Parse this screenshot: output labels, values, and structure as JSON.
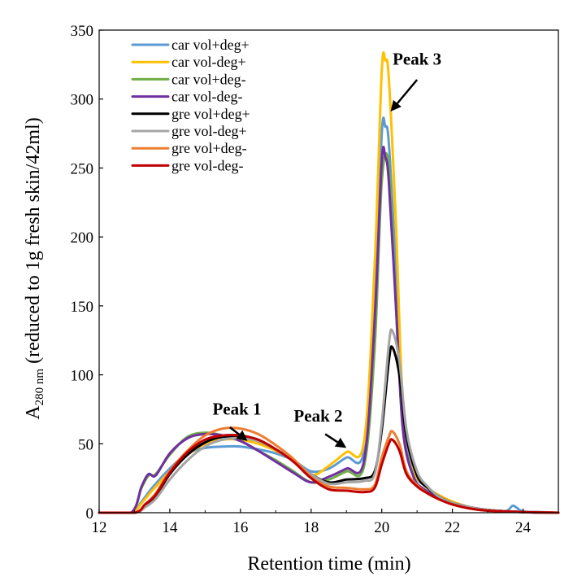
{
  "chart_data": {
    "type": "line",
    "xlabel": "Retention time (min)",
    "ylabel": {
      "prefix": "A",
      "subscript": "280 nm",
      "suffix": " (reduced to 1g fresh skin/42ml)"
    },
    "xlim": [
      12,
      25
    ],
    "ylim": [
      0,
      350
    ],
    "xticks": [
      "12",
      "14",
      "16",
      "18",
      "20",
      "22",
      "24"
    ],
    "yticks": [
      "0",
      "50",
      "100",
      "150",
      "200",
      "250",
      "300",
      "350"
    ],
    "grid": false,
    "legend_position": "top-left",
    "series": [
      {
        "name": "car vol+deg+",
        "color": "#5B9BD5",
        "x": [
          12,
          12.9,
          13.2,
          13.5,
          14,
          14.5,
          15,
          15.5,
          16,
          16.5,
          17,
          17.5,
          18,
          18.5,
          19,
          19.5,
          19.8,
          20,
          20.1,
          20.2,
          20.4,
          20.6,
          20.9,
          21.2,
          21.6,
          22,
          22.5,
          23,
          23.5,
          23.7,
          23.8,
          24,
          24.5,
          25
        ],
        "y": [
          0,
          0,
          8,
          18,
          32,
          43,
          47,
          48,
          48,
          46,
          43,
          38,
          30,
          32,
          40,
          45,
          150,
          275,
          280,
          268,
          175,
          70,
          30,
          20,
          13,
          8,
          4,
          2,
          1,
          5,
          4,
          1,
          0.5,
          0
        ]
      },
      {
        "name": "car vol-deg+",
        "color": "#FFC000",
        "x": [
          12,
          12.9,
          13.2,
          13.5,
          14,
          14.5,
          15,
          15.5,
          16,
          16.5,
          17,
          17.5,
          18,
          18.5,
          19,
          19.5,
          19.8,
          20,
          20.1,
          20.2,
          20.4,
          20.6,
          20.9,
          21.2,
          21.6,
          22,
          22.5,
          23,
          23.5,
          24,
          24.5,
          25
        ],
        "y": [
          0,
          0,
          7,
          16,
          30,
          42,
          50,
          53,
          53,
          50,
          45,
          38,
          27,
          34,
          44,
          52,
          180,
          320,
          328,
          315,
          210,
          80,
          32,
          20,
          13,
          8,
          4,
          2,
          1,
          0.5,
          0.3,
          0
        ]
      },
      {
        "name": "car vol+deg-",
        "color": "#70AD47",
        "x": [
          12,
          12.9,
          13.2,
          13.4,
          13.6,
          14,
          14.5,
          15,
          15.5,
          16,
          16.5,
          17,
          17.5,
          18,
          18.5,
          19,
          19.5,
          19.8,
          20,
          20.2,
          20.4,
          20.6,
          20.9,
          21.2,
          21.6,
          22,
          22.5,
          23,
          24,
          25
        ],
        "y": [
          0,
          0,
          18,
          27,
          28,
          42,
          55,
          58,
          56,
          52,
          45,
          38,
          30,
          22,
          24,
          30,
          34,
          120,
          240,
          252,
          150,
          60,
          26,
          17,
          11,
          7,
          4,
          2,
          0.5,
          0
        ]
      },
      {
        "name": "car vol-deg-",
        "color": "#7030A0",
        "x": [
          12,
          12.9,
          13.2,
          13.4,
          13.6,
          14,
          14.5,
          15,
          15.5,
          16,
          16.5,
          17,
          17.5,
          18,
          18.5,
          19,
          19.5,
          19.8,
          20,
          20.1,
          20.2,
          20.4,
          20.6,
          20.9,
          21.2,
          21.6,
          22,
          22.5,
          23,
          24,
          25
        ],
        "y": [
          0,
          0,
          19,
          28,
          27,
          43,
          54,
          57,
          56,
          52,
          45,
          37,
          29,
          22,
          26,
          32,
          38,
          140,
          255,
          258,
          240,
          150,
          60,
          26,
          17,
          11,
          7,
          4,
          2,
          0.5,
          0
        ]
      },
      {
        "name": "gre vol+deg+",
        "color": "#000000",
        "x": [
          12,
          13,
          13.3,
          13.6,
          14,
          14.5,
          15,
          15.5,
          16,
          16.5,
          17,
          17.5,
          18,
          18.5,
          19,
          19.5,
          19.8,
          20,
          20.2,
          20.3,
          20.5,
          20.7,
          21,
          21.3,
          21.6,
          22,
          22.5,
          23,
          24,
          25
        ],
        "y": [
          0,
          0,
          5,
          12,
          28,
          42,
          51,
          55,
          55,
          52,
          46,
          38,
          28,
          22,
          24,
          25,
          30,
          60,
          110,
          120,
          100,
          55,
          27,
          18,
          12,
          7,
          4,
          2,
          0.5,
          0
        ]
      },
      {
        "name": "gre vol-deg+",
        "color": "#A5A5A5",
        "x": [
          12,
          13,
          13.3,
          13.6,
          14,
          14.5,
          15,
          15.5,
          16,
          16.5,
          17,
          17.5,
          18,
          18.5,
          19,
          19.5,
          19.8,
          20,
          20.2,
          20.3,
          20.5,
          20.7,
          21,
          21.3,
          21.6,
          22,
          22.5,
          23,
          24,
          25
        ],
        "y": [
          0,
          0,
          4,
          10,
          24,
          38,
          48,
          53,
          54,
          52,
          46,
          38,
          28,
          21,
          22,
          23,
          28,
          65,
          122,
          132,
          110,
          60,
          30,
          19,
          12,
          7,
          4,
          2,
          0.5,
          0
        ]
      },
      {
        "name": "gre vol+deg-",
        "color": "#ED7D31",
        "x": [
          12,
          13,
          13.3,
          13.6,
          14,
          14.5,
          15,
          15.5,
          16,
          16.5,
          17,
          17.5,
          18,
          18.5,
          19,
          19.5,
          19.8,
          20,
          20.2,
          20.3,
          20.5,
          20.7,
          21,
          21.3,
          21.6,
          22,
          22.5,
          23,
          24,
          25
        ],
        "y": [
          0,
          0,
          6,
          14,
          30,
          45,
          56,
          61,
          61,
          57,
          49,
          39,
          26,
          19,
          18,
          17,
          20,
          40,
          55,
          59,
          50,
          30,
          20,
          14,
          10,
          6,
          3,
          1.5,
          0.5,
          0
        ]
      },
      {
        "name": "gre vol-deg-",
        "color": "#C00000",
        "x": [
          12,
          13,
          13.3,
          13.6,
          14,
          14.5,
          15,
          15.5,
          16,
          16.5,
          17,
          17.5,
          18,
          18.5,
          19,
          19.5,
          19.8,
          20,
          20.2,
          20.3,
          20.5,
          20.7,
          21,
          21.3,
          21.6,
          22,
          22.5,
          23,
          24,
          25
        ],
        "y": [
          0,
          0,
          6,
          13,
          29,
          44,
          53,
          56,
          56,
          53,
          46,
          37,
          25,
          17,
          16,
          15,
          18,
          35,
          50,
          53,
          45,
          28,
          19,
          14,
          10,
          6,
          3,
          1.5,
          0.5,
          0
        ]
      }
    ],
    "annotations": [
      {
        "label": "Peak 1",
        "text_at": [
          15.9,
          71
        ],
        "arrow_from": [
          15.7,
          62
        ],
        "arrow_to": [
          16.2,
          52
        ]
      },
      {
        "label": "Peak 2",
        "text_at": [
          18.2,
          66
        ],
        "arrow_from": [
          18.4,
          57
        ],
        "arrow_to": [
          19.0,
          47
        ]
      },
      {
        "label": "Peak 3",
        "text_at": [
          21.0,
          325
        ],
        "arrow_from": [
          21.0,
          314
        ],
        "arrow_to": [
          20.25,
          291
        ]
      }
    ]
  }
}
